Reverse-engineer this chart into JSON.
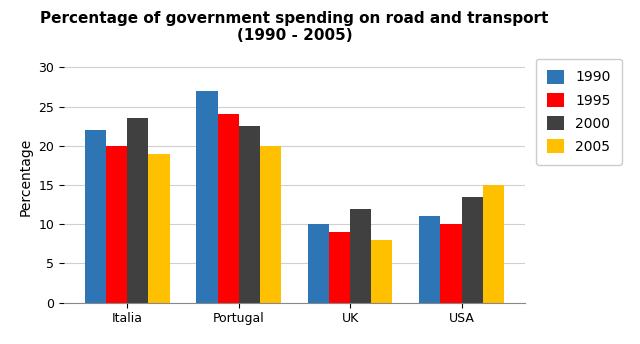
{
  "title": "Percentage of government spending on road and transport\n(1990 - 2005)",
  "ylabel": "Percentage",
  "categories": [
    "Italia",
    "Portugal",
    "UK",
    "USA"
  ],
  "years": [
    "1990",
    "1995",
    "2000",
    "2005"
  ],
  "values": {
    "1990": [
      22,
      27,
      10,
      11
    ],
    "1995": [
      20,
      24,
      9,
      10
    ],
    "2000": [
      23.5,
      22.5,
      12,
      13.5
    ],
    "2005": [
      19,
      20,
      8,
      15
    ]
  },
  "bar_colors": {
    "1990": "#2E75B6",
    "1995": "#FF0000",
    "2000": "#404040",
    "2005": "#FFC000"
  },
  "ylim": [
    0,
    32
  ],
  "yticks": [
    0,
    5,
    10,
    15,
    20,
    25,
    30
  ],
  "bar_width": 0.19,
  "background_color": "#ffffff",
  "grid_color": "#d0d0d0",
  "title_fontsize": 11,
  "axis_label_fontsize": 10,
  "tick_fontsize": 9,
  "legend_fontsize": 10
}
